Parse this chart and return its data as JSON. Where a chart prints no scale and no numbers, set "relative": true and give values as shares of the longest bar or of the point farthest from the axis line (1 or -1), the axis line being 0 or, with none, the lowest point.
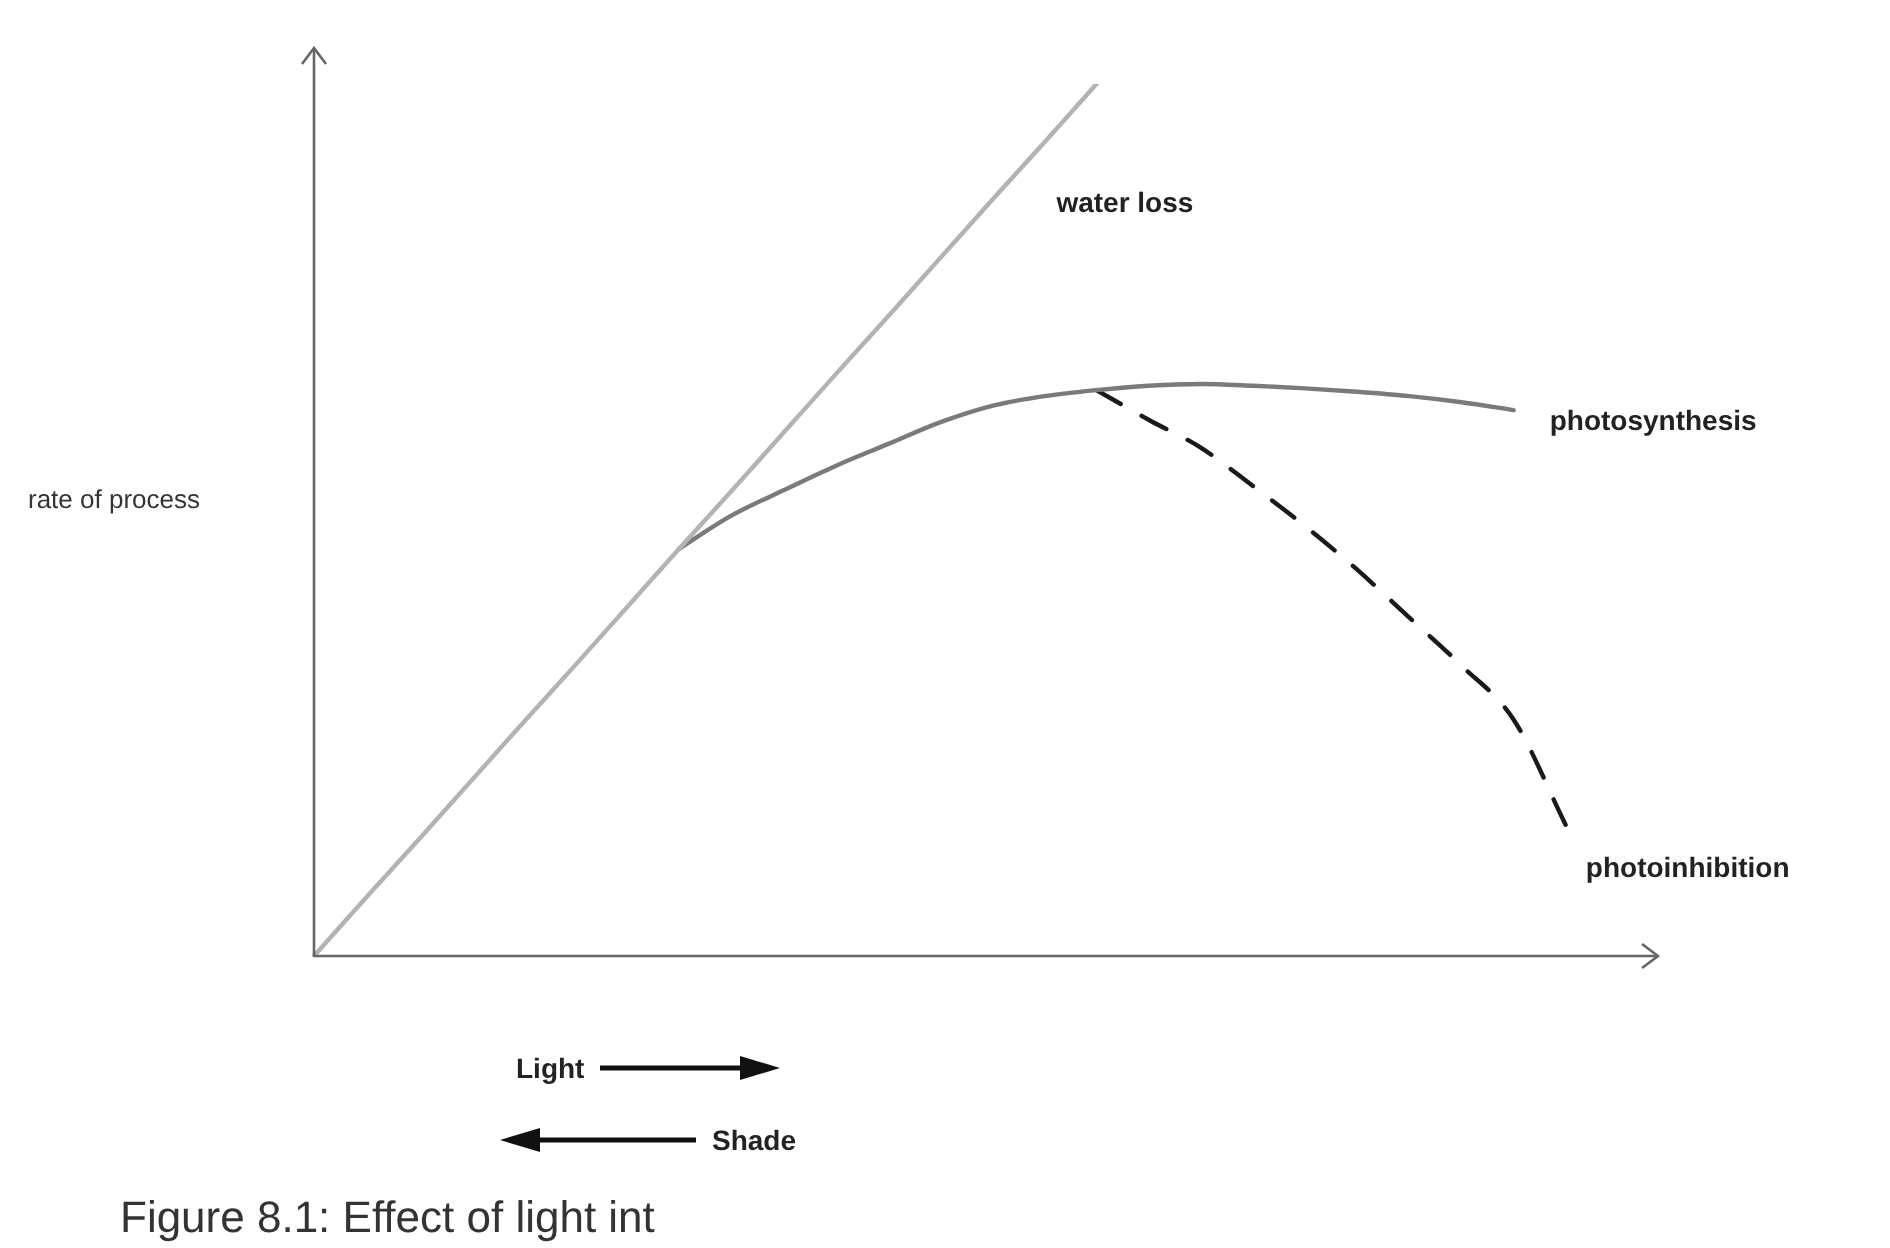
{
  "chart_data": {
    "type": "line",
    "relative": true,
    "ylabel": "rate of process",
    "legend": false,
    "marker": "none",
    "categories": [
      null,
      null,
      null,
      null,
      null,
      null,
      null,
      null,
      null,
      null,
      null,
      null,
      null,
      null,
      null,
      null,
      null,
      null,
      null,
      null,
      null,
      null,
      null,
      null,
      null,
      null
    ],
    "series": [
      {
        "name": "water loss",
        "color": "#b3b3b3",
        "line_style": "solid",
        "values": [
          0,
          0.067,
          0.133,
          0.2,
          0.267,
          0.333,
          0.4,
          0.467,
          0.533,
          0.6,
          0.667,
          0.733,
          0.8,
          0.867,
          0.933,
          1,
          null,
          null,
          null,
          null,
          null,
          null,
          null,
          null,
          null,
          null
        ]
      },
      {
        "name": "photosynthesis",
        "color": "#7a7a7a",
        "line_style": "solid",
        "values": [
          null,
          null,
          null,
          null,
          null,
          null,
          null,
          0.467,
          0.505,
          0.534,
          0.562,
          0.587,
          0.612,
          0.631,
          0.642,
          0.649,
          0.654,
          0.656,
          0.654,
          0.651,
          0.647,
          0.642,
          0.635,
          0.626,
          null,
          null
        ]
      },
      {
        "name": "photoinhibition",
        "color": "#1a1a1a",
        "line_style": "dashed",
        "values": [
          null,
          null,
          null,
          null,
          null,
          null,
          null,
          null,
          null,
          null,
          null,
          null,
          null,
          null,
          null,
          0.649,
          0.615,
          0.583,
          0.539,
          0.493,
          0.443,
          0.388,
          0.333,
          0.271,
          0.15,
          null
        ]
      }
    ],
    "annotations": [
      "Light",
      "Shade",
      "Figure 8.1: Effect of light int"
    ]
  }
}
